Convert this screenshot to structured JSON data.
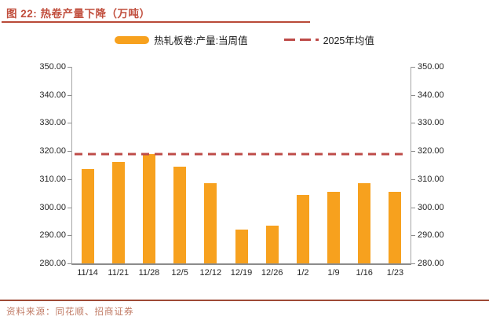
{
  "figure": {
    "title": "图 22: 热卷产量下降（万吨）",
    "source": "资料来源：同花顺、招商证券"
  },
  "legend": [
    {
      "label": "热轧板卷:产量:当周值",
      "marker": "bar-swatch"
    },
    {
      "label": "2025年均值",
      "marker": "dashed-line-swatch"
    }
  ],
  "chart_data": {
    "type": "bar",
    "title": "图 22: 热卷产量下降（万吨）",
    "categories": [
      "11/14",
      "11/21",
      "11/28",
      "12/5",
      "12/12",
      "12/19",
      "12/26",
      "1/2",
      "1/9",
      "1/16",
      "1/23"
    ],
    "series": [
      {
        "name": "热轧板卷:产量:当周值",
        "type": "bar",
        "color": "#f7a11e",
        "values": [
          313.5,
          316.1,
          319.0,
          314.5,
          308.7,
          292.0,
          293.4,
          304.5,
          305.5,
          308.5,
          305.4
        ]
      },
      {
        "name": "2025年均值",
        "type": "horizontal-dashed-line",
        "color": "#be4b48",
        "value": 318.9
      }
    ],
    "xlabel": "",
    "ylabel": "",
    "ylim": [
      280,
      350
    ],
    "ytick_step": 10,
    "ytick_labels_desc": [
      "350.00",
      "340.00",
      "330.00",
      "320.00",
      "310.00",
      "300.00",
      "290.00",
      "280.00"
    ],
    "y_axes": [
      "left",
      "right"
    ],
    "grid": false,
    "legend_position": "top-center"
  }
}
